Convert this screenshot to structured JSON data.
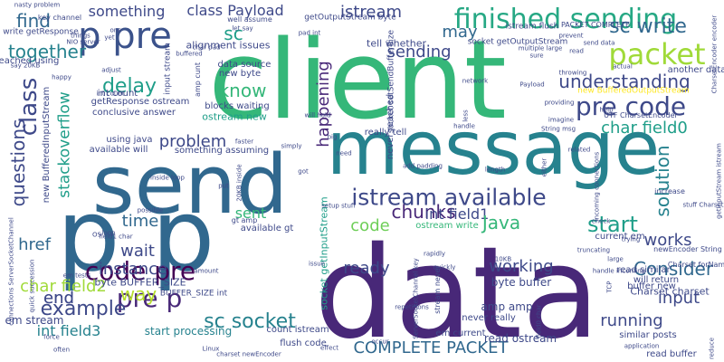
{
  "cloud": {
    "background": "#ffffff",
    "palette": [
      "#440154",
      "#482878",
      "#3e4989",
      "#31688e",
      "#26828e",
      "#1f9e89",
      "#35b779",
      "#6ece58",
      "#b5de2b",
      "#fde725"
    ],
    "words": [
      {
        "text": "client",
        "color": "#35b779"
      },
      {
        "text": "data",
        "color": "#482878"
      },
      {
        "text": "message",
        "color": "#26828e"
      },
      {
        "text": "send",
        "color": "#31688e"
      },
      {
        "text": "p p",
        "color": "#31688e"
      },
      {
        "text": "finished sending",
        "color": "#26a884"
      },
      {
        "text": "p pre",
        "color": "#3b528b"
      },
      {
        "text": "code pre",
        "color": "#440154"
      },
      {
        "text": "pre p",
        "color": "#482878"
      },
      {
        "text": "pre code",
        "color": "#3e4989"
      },
      {
        "text": "packet",
        "color": "#a0da39"
      },
      {
        "text": "sc write",
        "color": "#31688e"
      },
      {
        "text": "example",
        "color": "#3e4989"
      },
      {
        "text": "istream available",
        "color": "#3e4989"
      },
      {
        "text": "sc socket",
        "color": "#26828e"
      },
      {
        "text": "COMPLETE PACKET",
        "color": "#31688e"
      },
      {
        "text": "something",
        "color": "#3e4989"
      },
      {
        "text": "class Payload",
        "color": "#3e4989"
      },
      {
        "text": "istream",
        "color": "#3e4989"
      },
      {
        "text": "sc",
        "color": "#1f9e89"
      },
      {
        "text": "may",
        "color": "#31688e"
      },
      {
        "text": "find",
        "color": "#31688e"
      },
      {
        "text": "together",
        "color": "#26828e"
      },
      {
        "text": "class",
        "color": "#3e4989"
      },
      {
        "text": "delay",
        "color": "#1f9e89"
      },
      {
        "text": "know",
        "color": "#35b779"
      },
      {
        "text": "understanding",
        "color": "#3e4989"
      },
      {
        "text": "happening",
        "color": "#482878"
      },
      {
        "text": "problem",
        "color": "#3e4989"
      },
      {
        "text": "char field0",
        "color": "#1f9e89"
      },
      {
        "text": "solution",
        "color": "#26828e"
      },
      {
        "text": "stackoverflow",
        "color": "#1f9e89"
      },
      {
        "text": "questions",
        "color": "#3e4989"
      },
      {
        "text": "chunks",
        "color": "#482878"
      },
      {
        "text": "sending",
        "color": "#3e4989"
      },
      {
        "text": "start",
        "color": "#1f9e89"
      },
      {
        "text": "int field1",
        "color": "#3e4989"
      },
      {
        "text": "Java",
        "color": "#35b779"
      },
      {
        "text": "code",
        "color": "#6ece58"
      },
      {
        "text": "time",
        "color": "#31688e"
      },
      {
        "text": "sent",
        "color": "#35b779"
      },
      {
        "text": "wait",
        "color": "#3e4989"
      },
      {
        "text": "works",
        "color": "#3e4989"
      },
      {
        "text": "href",
        "color": "#31688e"
      },
      {
        "text": "instance",
        "color": "#3e4989"
      },
      {
        "text": "ready",
        "color": "#3e4989"
      },
      {
        "text": "working",
        "color": "#3e4989"
      },
      {
        "text": "Consider",
        "color": "#31688e"
      },
      {
        "text": "char field2",
        "color": "#a0da39"
      },
      {
        "text": "way",
        "color": "#b5de2b"
      },
      {
        "text": "end",
        "color": "#3e4989"
      },
      {
        "text": "input",
        "color": "#3e4989"
      },
      {
        "text": "int field3",
        "color": "#26828e"
      },
      {
        "text": "running",
        "color": "#3e4989"
      },
      {
        "text": "end",
        "color": "#3e4989"
      },
      {
        "text": "em stream",
        "color": "#3e4989"
      },
      {
        "text": "amp amp",
        "color": "#3e4989"
      },
      {
        "text": "read ostream",
        "color": "#3e4989"
      },
      {
        "text": "byte buffer",
        "color": "#3e4989"
      },
      {
        "text": "start processing",
        "color": "#26828e"
      },
      {
        "text": "byte BUFFER_SIZE",
        "color": "#3e4989"
      },
      {
        "text": "alignment issues",
        "color": "#3e4989"
      },
      {
        "text": "tell whether",
        "color": "#3e4989"
      },
      {
        "text": "ostream new",
        "color": "#1f9e89"
      },
      {
        "text": "blocks waiting",
        "color": "#3e4989"
      },
      {
        "text": "data source",
        "color": "#3e4989"
      },
      {
        "text": "new byte",
        "color": "#3e4989"
      },
      {
        "text": "conclusive answer",
        "color": "#3e4989"
      },
      {
        "text": "getResponse ostream",
        "color": "#3e4989"
      },
      {
        "text": "int count",
        "color": "#3e4989"
      },
      {
        "text": "available will",
        "color": "#3e4989"
      },
      {
        "text": "using java",
        "color": "#3e4989"
      },
      {
        "text": "something assuming",
        "color": "#3e4989"
      },
      {
        "text": "really tell",
        "color": "#3e4989"
      },
      {
        "text": "never reached",
        "color": "#3e4989"
      },
      {
        "text": "another data",
        "color": "#3e4989"
      },
      {
        "text": "new BufferedOutputStream",
        "color": "#fde725"
      },
      {
        "text": "UTF CharsetEncoder",
        "color": "#3e4989"
      },
      {
        "text": "available gt",
        "color": "#3e4989"
      },
      {
        "text": "flush code",
        "color": "#3e4989"
      },
      {
        "text": "count istream",
        "color": "#3e4989"
      },
      {
        "text": "never really",
        "color": "#3e4989"
      },
      {
        "text": "em current",
        "color": "#3e4989"
      },
      {
        "text": "current em",
        "color": "#3e4989"
      },
      {
        "text": "ostream write",
        "color": "#35b779"
      },
      {
        "text": "will return",
        "color": "#3e4989"
      },
      {
        "text": "read similar",
        "color": "#3e4989"
      },
      {
        "text": "buffer new",
        "color": "#3e4989"
      },
      {
        "text": "Charset charset",
        "color": "#3e4989"
      },
      {
        "text": "similar posts",
        "color": "#3e4989"
      },
      {
        "text": "read buffer",
        "color": "#3e4989"
      },
      {
        "text": "BUFFER_SIZE int",
        "color": "#3e4989"
      },
      {
        "text": "new BufferedInputStream",
        "color": "#3e4989"
      },
      {
        "text": "socket getInputStream",
        "color": "#1f9e89"
      },
      {
        "text": "socket getOutputStream",
        "color": "#3e4989"
      },
      {
        "text": "socket setSendBufferSize",
        "color": "#3e4989"
      },
      {
        "text": "getOutputStream byte",
        "color": "#3e4989"
      },
      {
        "text": "istream flush",
        "color": "#3e4989"
      },
      {
        "text": "PACKET COMPLETE",
        "color": "#3e4989"
      },
      {
        "text": "well assume",
        "color": "#3e4989"
      },
      {
        "text": "key channel",
        "color": "#3e4989"
      },
      {
        "text": "write getResponse",
        "color": "#3e4989"
      },
      {
        "text": "reached using",
        "color": "#3e4989"
      },
      {
        "text": "nasty problem",
        "color": "#3e4989"
      },
      {
        "text": "NIO server",
        "color": "#3e4989"
      },
      {
        "text": "let say",
        "color": "#3e4989"
      },
      {
        "text": "pad int",
        "color": "#3e4989"
      },
      {
        "text": "char pad",
        "color": "#3e4989"
      },
      {
        "text": "buffered",
        "color": "#3e4989"
      },
      {
        "text": "adjust",
        "color": "#3e4989"
      },
      {
        "text": "happy",
        "color": "#3e4989"
      },
      {
        "text": "say 20KB",
        "color": "#3e4989"
      },
      {
        "text": "int count",
        "color": "#3e4989"
      },
      {
        "text": "input stream",
        "color": "#3e4989"
      },
      {
        "text": "amp cunt",
        "color": "#3e4989"
      },
      {
        "text": "network",
        "color": "#3e4989"
      },
      {
        "text": "Payload",
        "color": "#3e4989"
      },
      {
        "text": "help",
        "color": "#3e4989"
      },
      {
        "text": "imagine",
        "color": "#3e4989"
      },
      {
        "text": "String msg",
        "color": "#3e4989"
      },
      {
        "text": "related",
        "color": "#3e4989"
      },
      {
        "text": "either",
        "color": "#3e4989"
      },
      {
        "text": "actual",
        "color": "#3e4989"
      },
      {
        "text": "throwing",
        "color": "#3e4989"
      },
      {
        "text": "prevent",
        "color": "#3e4989"
      },
      {
        "text": "multiple large",
        "color": "#3e4989"
      },
      {
        "text": "handle",
        "color": "#3e4989"
      },
      {
        "text": "setup stuff",
        "color": "#3e4989"
      },
      {
        "text": "add padding",
        "color": "#3e4989"
      },
      {
        "text": "length",
        "color": "#3e4989"
      },
      {
        "text": "increase",
        "color": "#3e4989"
      },
      {
        "text": "stuff Charset",
        "color": "#3e4989"
      },
      {
        "text": "ServerSocketChannel key",
        "color": "#3e4989"
      },
      {
        "text": "rapidly",
        "color": "#3e4989"
      },
      {
        "text": "check",
        "color": "#3e4989"
      },
      {
        "text": "trying",
        "color": "#3e4989"
      },
      {
        "text": "large",
        "color": "#3e4989"
      },
      {
        "text": "truncating",
        "color": "#3e4989"
      },
      {
        "text": "handle incoming",
        "color": "#3e4989"
      },
      {
        "text": "quickly",
        "color": "#3e4989"
      },
      {
        "text": "repetitions",
        "color": "#3e4989"
      },
      {
        "text": "application",
        "color": "#3e4989"
      },
      {
        "text": "reduce",
        "color": "#3e4989"
      },
      {
        "text": "Linux",
        "color": "#3e4989"
      },
      {
        "text": "effect",
        "color": "#3e4989"
      },
      {
        "text": "occur",
        "color": "#3e4989"
      },
      {
        "text": "charset newEncoder",
        "color": "#3e4989"
      },
      {
        "text": "often",
        "color": "#3e4989"
      },
      {
        "text": "force",
        "color": "#3e4989"
      },
      {
        "text": "amount",
        "color": "#3e4989"
      },
      {
        "text": "gt amp",
        "color": "#3e4989"
      },
      {
        "text": "put",
        "color": "#3e4989"
      },
      {
        "text": "20KB inside",
        "color": "#3e4989"
      },
      {
        "text": "inside loop",
        "color": "#3e4989"
      },
      {
        "text": "loop",
        "color": "#3e4989"
      },
      {
        "text": "field1 char",
        "color": "#3e4989"
      },
      {
        "text": "em tests",
        "color": "#3e4989"
      },
      {
        "text": "connections ServerSocketChannel",
        "color": "#3e4989"
      },
      {
        "text": "quick succession",
        "color": "#3e4989"
      },
      {
        "text": "faster",
        "color": "#3e4989"
      },
      {
        "text": "simply",
        "color": "#3e4989"
      },
      {
        "text": "got",
        "color": "#3e4989"
      },
      {
        "text": "Charset forName",
        "color": "#3e4989"
      },
      {
        "text": "newEncoder String",
        "color": "#3e4989"
      },
      {
        "text": "incoming connections",
        "color": "#3e4989"
      },
      {
        "text": "TCP",
        "color": "#3e4989"
      },
      {
        "text": "field0 char",
        "color": "#3e4989"
      },
      {
        "text": "10KB",
        "color": "#3e4989"
      },
      {
        "text": "less",
        "color": "#3e4989"
      },
      {
        "text": "OS",
        "color": "#3e4989"
      },
      {
        "text": "yet",
        "color": "#3e4989"
      },
      {
        "text": "one",
        "color": "#3e4989"
      },
      {
        "text": "things",
        "color": "#3e4989"
      },
      {
        "text": "providing",
        "color": "#3e4989"
      },
      {
        "text": "read",
        "color": "#3e4989"
      },
      {
        "text": "sure",
        "color": "#3e4989"
      },
      {
        "text": "send data",
        "color": "#3e4989"
      },
      {
        "text": "stream never",
        "color": "#3e4989"
      },
      {
        "text": "CharsetEncoder encoder",
        "color": "#3e4989"
      },
      {
        "text": "getInputStream istream",
        "color": "#3e4989"
      },
      {
        "text": "will hold",
        "color": "#3e4989"
      },
      {
        "text": "possible",
        "color": "#3e4989"
      },
      {
        "text": "issue",
        "color": "#3e4989"
      },
      {
        "text": "big",
        "color": "#3e4989"
      },
      {
        "text": "need",
        "color": "#3e4989"
      }
    ]
  }
}
